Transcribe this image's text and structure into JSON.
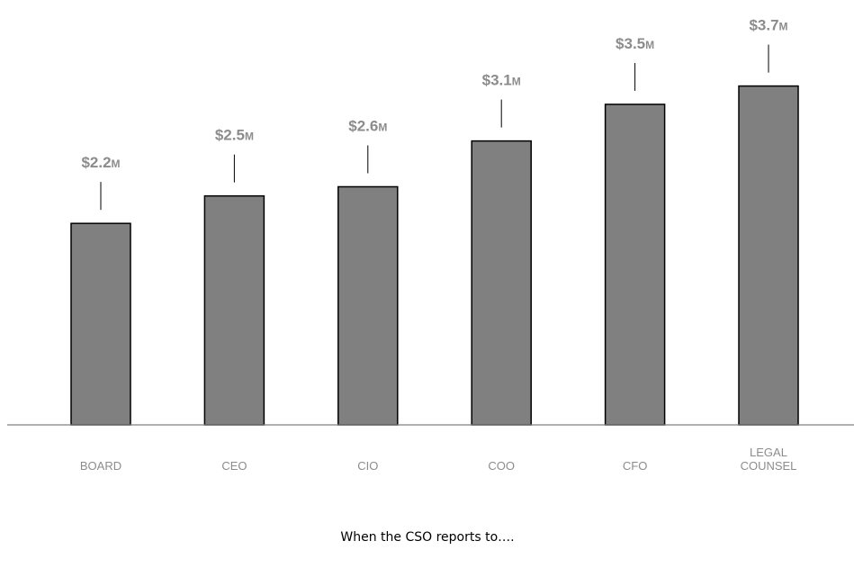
{
  "chart_data": {
    "type": "bar",
    "categories": [
      "BOARD",
      "CEO",
      "CIO",
      "COO",
      "CFO",
      "LEGAL COUNSEL"
    ],
    "category_lines": [
      [
        "BOARD"
      ],
      [
        "CEO"
      ],
      [
        "CIO"
      ],
      [
        "COO"
      ],
      [
        "CFO"
      ],
      [
        "LEGAL",
        "COUNSEL"
      ]
    ],
    "values": [
      2.2,
      2.5,
      2.6,
      3.1,
      3.5,
      3.7
    ],
    "value_labels": [
      "$2.2",
      "$2.5",
      "$2.6",
      "$3.1",
      "$3.5",
      "$3.7"
    ],
    "value_unit": "M",
    "title": "",
    "xlabel": "When the CSO reports to….",
    "ylabel": "",
    "ylim": [
      0,
      4.6
    ],
    "grid": false,
    "legend": "none",
    "colors": {
      "bar_fill": "#808080",
      "bar_stroke": "#000000",
      "label": "#8c8c8c",
      "baseline": "#808080"
    }
  }
}
